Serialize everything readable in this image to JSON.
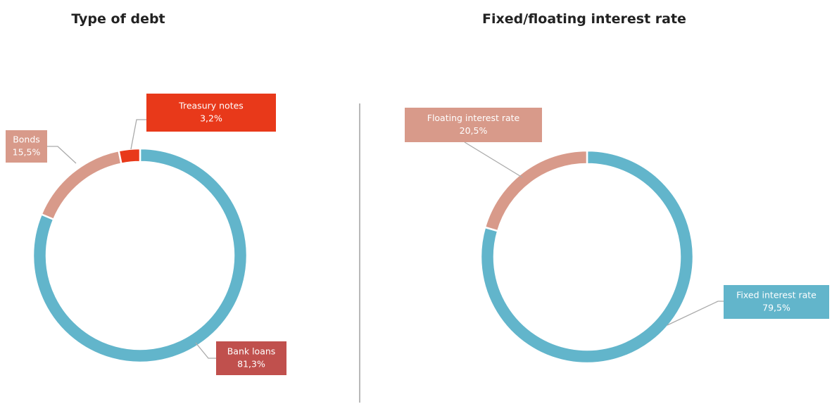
{
  "chart_data": [
    {
      "type": "donut",
      "title": "Type of debt",
      "categories": [
        "Bank loans",
        "Bonds",
        "Treasury notes"
      ],
      "values": [
        81.3,
        15.5,
        3.2
      ],
      "value_labels": [
        "81,3%",
        "15,5%",
        "3,2%"
      ],
      "colors": [
        "#62b5cb",
        "#d89a8a",
        "#e8391a"
      ],
      "label_colors": [
        "#c0504d",
        "#d89a8a",
        "#e8391a"
      ]
    },
    {
      "type": "donut",
      "title": "Fixed/floating interest rate",
      "categories": [
        "Fixed interest rate",
        "Floating interest rate"
      ],
      "values": [
        79.5,
        20.5
      ],
      "value_labels": [
        "79,5%",
        "20,5%"
      ],
      "colors": [
        "#62b5cb",
        "#d89a8a"
      ],
      "label_colors": [
        "#62b5cb",
        "#d89a8a"
      ]
    }
  ]
}
